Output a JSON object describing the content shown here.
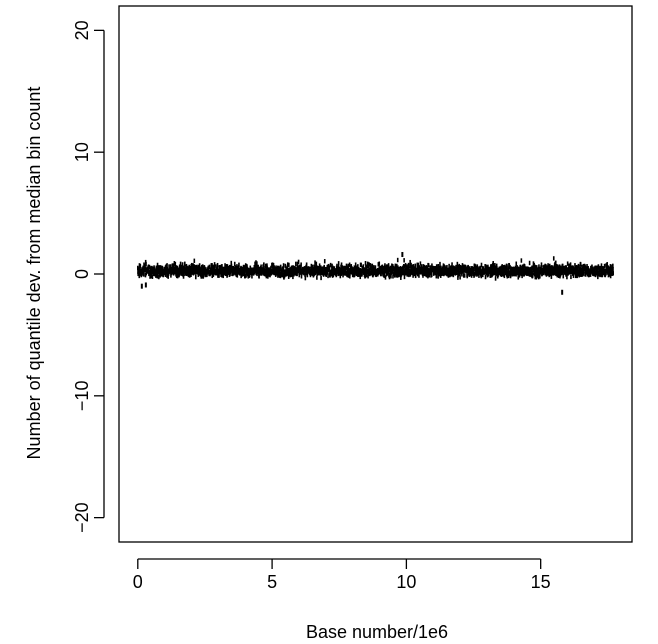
{
  "chart_data": {
    "type": "scatter",
    "title": "",
    "xlabel": "Base number/1e6",
    "ylabel": "Number of quantile dev. from median bin count",
    "xlim": [
      -0.7,
      18.4
    ],
    "ylim": [
      -22,
      22
    ],
    "xticks": [
      0,
      5,
      10,
      15
    ],
    "yticks": [
      -20,
      -10,
      0,
      10,
      20
    ],
    "xtick_labels": [
      "0",
      "5",
      "10",
      "15"
    ],
    "ytick_labels": [
      "−20",
      "−10",
      "0",
      "10",
      "20"
    ],
    "grid": false,
    "legend": "none",
    "color": "#000000",
    "series": [
      {
        "x_range": [
          0.0,
          17.7
        ],
        "typical_band": [
          -0.5,
          1.0
        ],
        "max": 1.6,
        "min": -1.5,
        "notable_points": [
          {
            "x": 0.15,
            "y": -1.0
          },
          {
            "x": 0.3,
            "y": -0.9
          },
          {
            "x": 9.85,
            "y": 1.6
          },
          {
            "x": 15.8,
            "y": -1.5
          }
        ]
      }
    ]
  }
}
